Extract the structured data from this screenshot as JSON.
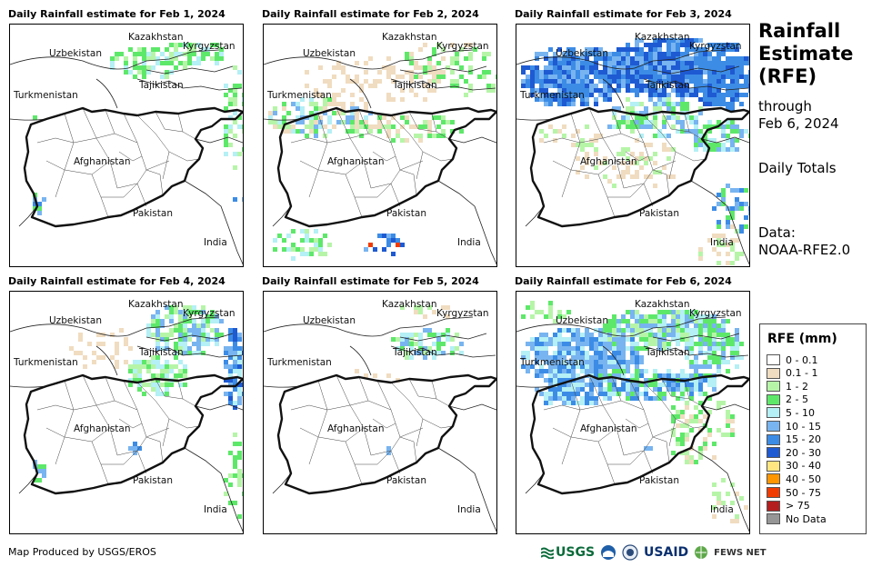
{
  "panels": [
    {
      "title": "Daily Rainfall estimate for Feb 1, 2024"
    },
    {
      "title": "Daily Rainfall estimate for Feb 2, 2024"
    },
    {
      "title": "Daily Rainfall estimate for Feb 3, 2024"
    },
    {
      "title": "Daily Rainfall estimate for Feb 4, 2024"
    },
    {
      "title": "Daily Rainfall estimate for Feb 5, 2024"
    },
    {
      "title": "Daily Rainfall estimate for Feb 6, 2024"
    }
  ],
  "map_labels": {
    "kazakhstan": "Kazakhstan",
    "kyrgyzstan": "Kyrgyzstan",
    "uzbekistan": "Uzbekistan",
    "tajikistan": "Tajikistan",
    "turkmenistan": "Turkmenistan",
    "afghanistan": "Afghanistan",
    "pakistan": "Pakistan",
    "india": "India"
  },
  "side": {
    "title_line1": "Rainfall",
    "title_line2": "Estimate",
    "title_line3": "(RFE)",
    "through": "through",
    "date": "Feb 6, 2024",
    "totals": "Daily Totals",
    "data_label": "Data:",
    "data_source": "NOAA-RFE2.0"
  },
  "legend": {
    "title": "RFE (mm)",
    "items": [
      {
        "label": "0 - 0.1",
        "color": "#ffffff"
      },
      {
        "label": "0.1 - 1",
        "color": "#f0dcc0"
      },
      {
        "label": "1 - 2",
        "color": "#b6f5a8"
      },
      {
        "label": "2 - 5",
        "color": "#5ee86a"
      },
      {
        "label": "5 - 10",
        "color": "#b4f0f5"
      },
      {
        "label": "10 - 15",
        "color": "#78b4f0"
      },
      {
        "label": "15 - 20",
        "color": "#3c8ce6"
      },
      {
        "label": "20 - 30",
        "color": "#1e5ad2"
      },
      {
        "label": "30 - 40",
        "color": "#ffe680"
      },
      {
        "label": "40 - 50",
        "color": "#ff9600"
      },
      {
        "label": "50 - 75",
        "color": "#f03c00"
      },
      {
        "label": "> 75",
        "color": "#b41e1e"
      },
      {
        "label": "No Data",
        "color": "#969696"
      }
    ]
  },
  "footer": {
    "credit": "Map Produced by USGS/EROS",
    "logo_usgs": "USGS",
    "logo_usaid": "USAID",
    "logo_fews": "FEWS NET"
  }
}
